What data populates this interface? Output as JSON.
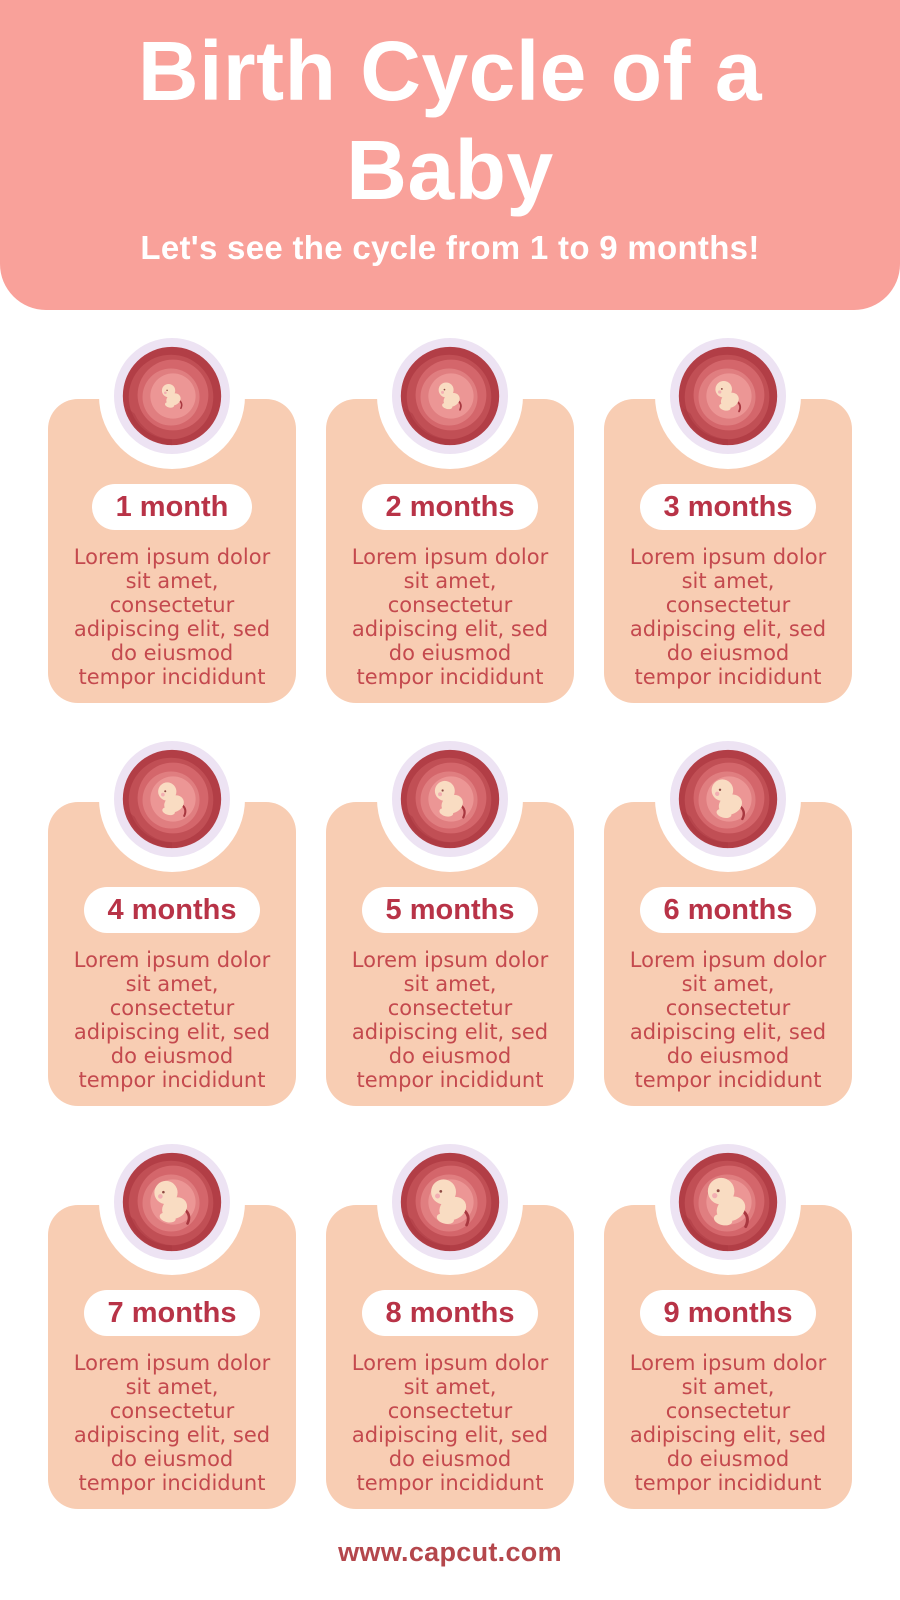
{
  "header": {
    "title": "Birth Cycle of a\nBaby",
    "subtitle": "Let's see the cycle from 1 to 9 months!"
  },
  "cards": [
    {
      "label": "1 month",
      "illustration": "fetus-month-1-icon",
      "description": "Lorem ipsum dolor\nsit amet,\nconsectetur\nadipiscing elit, sed\ndo eiusmod\ntempor incididunt"
    },
    {
      "label": "2 months",
      "illustration": "fetus-month-2-icon",
      "description": "Lorem ipsum dolor\nsit amet,\nconsectetur\nadipiscing elit, sed\ndo eiusmod\ntempor incididunt"
    },
    {
      "label": "3 months",
      "illustration": "fetus-month-3-icon",
      "description": "Lorem ipsum dolor\nsit amet,\nconsectetur\nadipiscing elit, sed\ndo eiusmod\ntempor incididunt"
    },
    {
      "label": "4 months",
      "illustration": "fetus-month-4-icon",
      "description": "Lorem ipsum dolor\nsit amet,\nconsectetur\nadipiscing elit, sed\ndo eiusmod\ntempor incididunt"
    },
    {
      "label": "5 months",
      "illustration": "fetus-month-5-icon",
      "description": "Lorem ipsum dolor\nsit amet,\nconsectetur\nadipiscing elit, sed\ndo eiusmod\ntempor incididunt"
    },
    {
      "label": "6 months",
      "illustration": "fetus-month-6-icon",
      "description": "Lorem ipsum dolor\nsit amet,\nconsectetur\nadipiscing elit, sed\ndo eiusmod\ntempor incididunt"
    },
    {
      "label": "7 months",
      "illustration": "fetus-month-7-icon",
      "description": "Lorem ipsum dolor\nsit amet,\nconsectetur\nadipiscing elit, sed\ndo eiusmod\ntempor incididunt"
    },
    {
      "label": "8 months",
      "illustration": "fetus-month-8-icon",
      "description": "Lorem ipsum dolor\nsit amet,\nconsectetur\nadipiscing elit, sed\ndo eiusmod\ntempor incididunt"
    },
    {
      "label": "9 months",
      "illustration": "fetus-month-9-icon",
      "description": "Lorem ipsum dolor\nsit amet,\nconsectetur\nadipiscing elit, sed\ndo eiusmod\ntempor incididunt"
    }
  ],
  "footer": {
    "url": "www.capcut.com"
  },
  "colors": {
    "header_pink": "#F9A19A",
    "card_peach": "#F8CDB3",
    "badge_red": "#B83347",
    "body_text_red": "#C4494E",
    "womb_dark_red": "#B23E46",
    "ring_lavender": "#EDE3F3",
    "baby_skin": "#F9DCC2",
    "footer_red": "#B4474C"
  }
}
